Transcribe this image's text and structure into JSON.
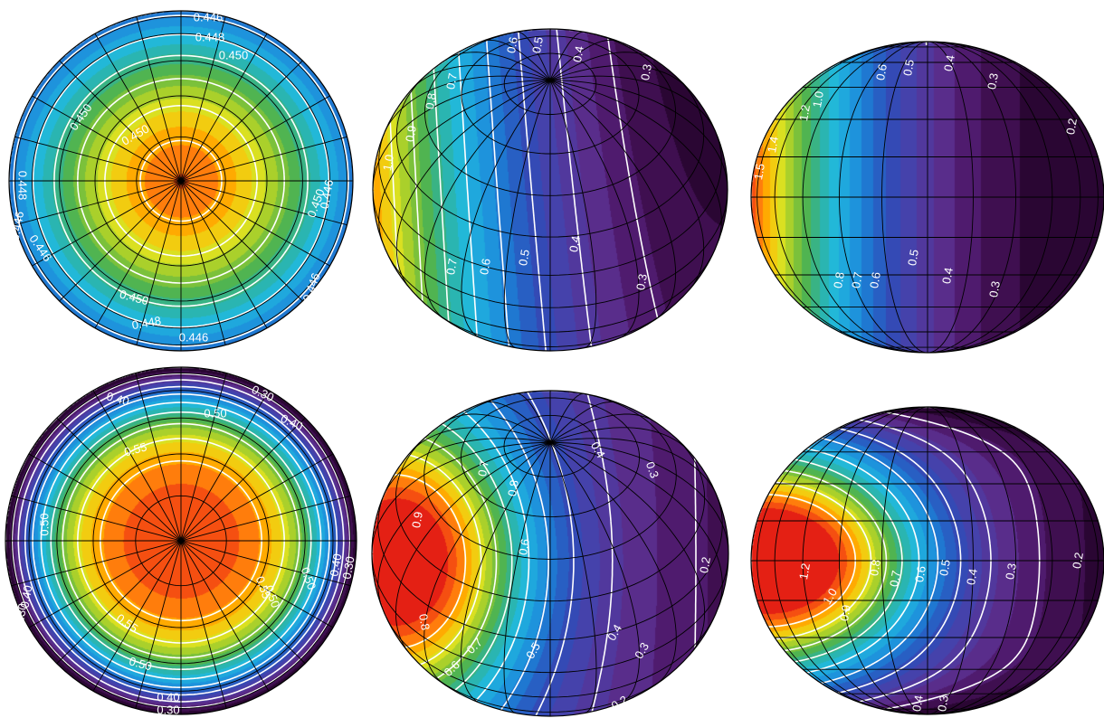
{
  "colormap": [
    "#2a0633",
    "#4b1461",
    "#5a2f8f",
    "#4a3fa8",
    "#2f4db8",
    "#1f74d0",
    "#1e9fe0",
    "#22b8d8",
    "#2fb39a",
    "#53b44a",
    "#9ccc2e",
    "#e8e41e",
    "#ffb000",
    "#ff6a10",
    "#e42014"
  ],
  "contour_color": "#ffffff",
  "grid_color": "#000000",
  "panels": [
    {
      "id": "top-polar",
      "row": 0,
      "col": 0,
      "view": "polar",
      "value_min": 0.44,
      "value_max": 0.452,
      "contour_labels": [
        {
          "text": "0.446"
        },
        {
          "text": "0.448"
        },
        {
          "text": "0.450"
        },
        {
          "text": "0.450"
        },
        {
          "text": "0.450"
        },
        {
          "text": "0.448"
        },
        {
          "text": "0.446"
        },
        {
          "text": "0.450"
        },
        {
          "text": "0.446"
        },
        {
          "text": "0.446"
        },
        {
          "text": "0.450"
        },
        {
          "text": "0.448"
        },
        {
          "text": "0.446"
        },
        {
          "text": "0.446"
        },
        {
          "text": "0.446"
        }
      ]
    },
    {
      "id": "top-oblique",
      "row": 0,
      "col": 1,
      "view": "oblique",
      "value_min": 0.25,
      "value_max": 1.6,
      "contour_labels": [
        {
          "text": "0.6"
        },
        {
          "text": "0.5"
        },
        {
          "text": "0.4"
        },
        {
          "text": "0.3"
        },
        {
          "text": "0.7"
        },
        {
          "text": "0.8"
        },
        {
          "text": "0.9"
        },
        {
          "text": "1.0"
        },
        {
          "text": "0.7"
        },
        {
          "text": "0.6"
        },
        {
          "text": "0.5"
        },
        {
          "text": "0.4"
        },
        {
          "text": "0.3"
        }
      ]
    },
    {
      "id": "top-equatorial",
      "row": 0,
      "col": 2,
      "view": "equatorial",
      "value_min": 0.15,
      "value_max": 1.6,
      "contour_labels": [
        {
          "text": "0.4"
        },
        {
          "text": "0.5"
        },
        {
          "text": "0.6"
        },
        {
          "text": "0.3"
        },
        {
          "text": "0.2"
        },
        {
          "text": "1.0"
        },
        {
          "text": "1.2"
        },
        {
          "text": "1.5"
        },
        {
          "text": "1.4"
        },
        {
          "text": "0.8"
        },
        {
          "text": "0.7"
        },
        {
          "text": "0.6"
        },
        {
          "text": "0.5"
        },
        {
          "text": "0.4"
        },
        {
          "text": "0.3"
        }
      ]
    },
    {
      "id": "bottom-polar",
      "row": 1,
      "col": 0,
      "view": "polar",
      "value_min": 0.28,
      "value_max": 0.58,
      "contour_labels": [
        {
          "text": "0.40"
        },
        {
          "text": "0.30"
        },
        {
          "text": "0.50"
        },
        {
          "text": "0.40"
        },
        {
          "text": "0.30"
        },
        {
          "text": "0.55"
        },
        {
          "text": "0.50"
        },
        {
          "text": "0.50"
        },
        {
          "text": "0.40"
        },
        {
          "text": "0.30"
        },
        {
          "text": "0.55"
        },
        {
          "text": "0.50"
        },
        {
          "text": "0.40"
        },
        {
          "text": "0.30"
        },
        {
          "text": "0.55"
        },
        {
          "text": "0.50"
        },
        {
          "text": "0.40"
        },
        {
          "text": "0.30"
        }
      ]
    },
    {
      "id": "bottom-oblique",
      "row": 1,
      "col": 1,
      "view": "oblique",
      "value_min": 0.15,
      "value_max": 1.1,
      "contour_labels": [
        {
          "text": "0.4"
        },
        {
          "text": "0.3"
        },
        {
          "text": "0.7"
        },
        {
          "text": "0.8"
        },
        {
          "text": "0.9"
        },
        {
          "text": "0.6"
        },
        {
          "text": "0.2"
        },
        {
          "text": "0.8"
        },
        {
          "text": "0.7"
        },
        {
          "text": "0.6"
        },
        {
          "text": "0.5"
        },
        {
          "text": "0.4"
        },
        {
          "text": "0.3"
        },
        {
          "text": "0.2"
        }
      ]
    },
    {
      "id": "bottom-equatorial",
      "row": 1,
      "col": 2,
      "view": "equatorial",
      "value_min": 0.05,
      "value_max": 1.35,
      "contour_labels": [
        {
          "text": "1.2"
        },
        {
          "text": "1.0"
        },
        {
          "text": "0.9"
        },
        {
          "text": "0.8"
        },
        {
          "text": "0.7"
        },
        {
          "text": "0.6"
        },
        {
          "text": "0.5"
        },
        {
          "text": "0.4"
        },
        {
          "text": "0.3"
        },
        {
          "text": "0.2"
        },
        {
          "text": "0.1"
        },
        {
          "text": "0.4"
        },
        {
          "text": "0.3"
        }
      ]
    }
  ]
}
